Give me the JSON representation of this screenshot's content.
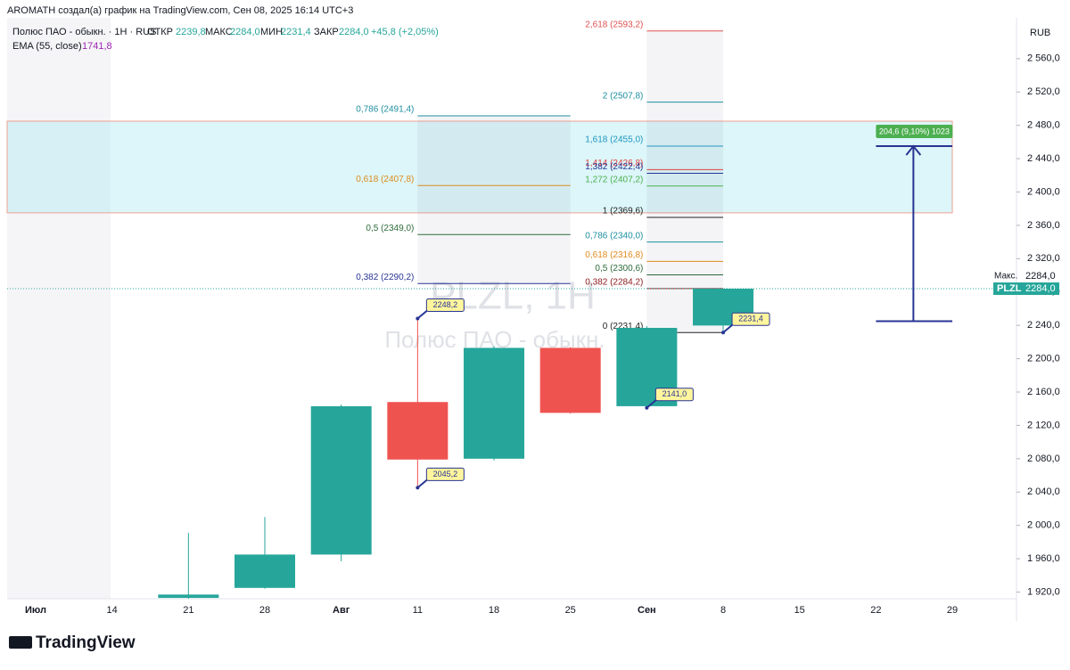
{
  "header": {
    "credit": "AROMATH создал(а) график на TradingView.com, Сен 08, 2025 16:14 UTC+3",
    "symbol": "Полюс ПАО - обыкн. · 1Н · RUS",
    "o_label": "ОТКР",
    "o": "2239,8",
    "h_label": "МАКС",
    "h": "2284,0",
    "l_label": "МИН",
    "l": "2231,4",
    "c_label": "ЗАКР",
    "c": "2284,0",
    "change": "+45,8 (+2,05%)",
    "ema": "EMA (55, close)",
    "ema_value": "1741,8",
    "currency": "RUB",
    "logo": "TradingView"
  },
  "chart_data": {
    "type": "candlestick",
    "watermark": "PLZL, 1Н",
    "watermark_sub": "Полюс ПАО - обыкн.",
    "categories": [
      "Июл",
      "14",
      "21",
      "28",
      "Авг",
      "11",
      "18",
      "25",
      "Сен",
      "8",
      "15",
      "22",
      "29"
    ],
    "open": [
      null,
      null,
      1913,
      1925,
      1965,
      2148,
      2080,
      2213,
      2143,
      2239.8,
      null,
      null,
      null
    ],
    "high": [
      null,
      null,
      1991,
      2010,
      2145,
      2248.2,
      2215,
      2214,
      2239,
      2284.0,
      null,
      null,
      null
    ],
    "low": [
      null,
      null,
      1912,
      1924,
      1957,
      2045.2,
      2078,
      2134,
      2141.0,
      2231.4,
      null,
      null,
      null
    ],
    "close": [
      null,
      null,
      1917,
      1965,
      2143,
      2079,
      2213,
      2135,
      2237,
      2284.0,
      null,
      null,
      null
    ],
    "up_color": "#26a69a",
    "down_color": "#ef5350",
    "ylim": [
      1912,
      2609
    ],
    "yticks": [
      {
        "value": 1920,
        "label": "1 920,0"
      },
      {
        "value": 1960,
        "label": "1 960,0"
      },
      {
        "value": 2000,
        "label": "2 000,0"
      },
      {
        "value": 2040,
        "label": "2 040,0"
      },
      {
        "value": 2080,
        "label": "2 080,0"
      },
      {
        "value": 2120,
        "label": "2 120,0"
      },
      {
        "value": 2160,
        "label": "2 160,0"
      },
      {
        "value": 2200,
        "label": "2 200,0"
      },
      {
        "value": 2240,
        "label": "2 240,0"
      },
      {
        "value": 2280,
        "label": "2 280,0"
      },
      {
        "value": 2320,
        "label": "2 320,0"
      },
      {
        "value": 2360,
        "label": "2 360,0"
      },
      {
        "value": 2400,
        "label": "2 400,0"
      },
      {
        "value": 2440,
        "label": "2 440,0"
      },
      {
        "value": 2480,
        "label": "2 480,0"
      },
      {
        "value": 2520,
        "label": "2 520,0"
      },
      {
        "value": 2560,
        "label": "2 560,0"
      }
    ],
    "fibs": [
      {
        "from": "11",
        "to": "25",
        "levels": [
          {
            "value": 2491.4,
            "label": "0,786 (2491,4)",
            "color": "#1e8fa0"
          },
          {
            "value": 2407.8,
            "label": "0,618 (2407,8)",
            "color": "#e08a1e"
          },
          {
            "value": 2349.0,
            "label": "0,5 (2349,0)",
            "color": "#2e6b3a"
          },
          {
            "value": 2290.2,
            "label": "0,382 (2290,2)",
            "color": "#283593"
          }
        ]
      },
      {
        "from": "Сен",
        "to": "8",
        "levels": [
          {
            "value": 2593.2,
            "label": "2,618 (2593,2)",
            "color": "#e05050"
          },
          {
            "value": 2507.8,
            "label": "2 (2507,8)",
            "color": "#1e8fa0"
          },
          {
            "value": 2455.0,
            "label": "1,618 (2455,0)",
            "color": "#2196c0"
          },
          {
            "value": 2426.8,
            "label": "1,414 (2426,8)",
            "color": "#e04040"
          },
          {
            "value": 2422.4,
            "label": "1,382 (2422,4)",
            "color": "#283593"
          },
          {
            "value": 2407.2,
            "label": "1,272 (2407,2)",
            "color": "#4caf50"
          },
          {
            "value": 2369.6,
            "label": "1 (2369,6)",
            "color": "#222222"
          },
          {
            "value": 2340.0,
            "label": "0,786 (2340,0)",
            "color": "#1e8fa0"
          },
          {
            "value": 2316.8,
            "label": "0,618 (2316,8)",
            "color": "#e08a1e"
          },
          {
            "value": 2300.6,
            "label": "0,5 (2300,6)",
            "color": "#2e6b3a"
          },
          {
            "value": 2284.2,
            "label": "0,382 (2284,2)",
            "color": "#8b1a1a"
          },
          {
            "value": 2231.4,
            "label": "0 (2231,4)",
            "color": "#222222"
          }
        ]
      }
    ],
    "zone": [
      2375,
      2485
    ],
    "measure": {
      "from": 2245,
      "to": 2455,
      "label": "204,6 (9,10%) 1023"
    },
    "pivots": [
      {
        "x": "11",
        "value": 2248.2,
        "label": "2248,2"
      },
      {
        "x": "11",
        "value": 2045.2,
        "label": "2045,2"
      },
      {
        "x": "Сен",
        "value": 2141.0,
        "label": "2141,0"
      },
      {
        "x": "8",
        "value": 2231.4,
        "label": "2231,4"
      }
    ],
    "max_label": "Макс.",
    "max_value": "2284,0",
    "last_symbol": "PLZL",
    "last_value": "2284,0"
  }
}
